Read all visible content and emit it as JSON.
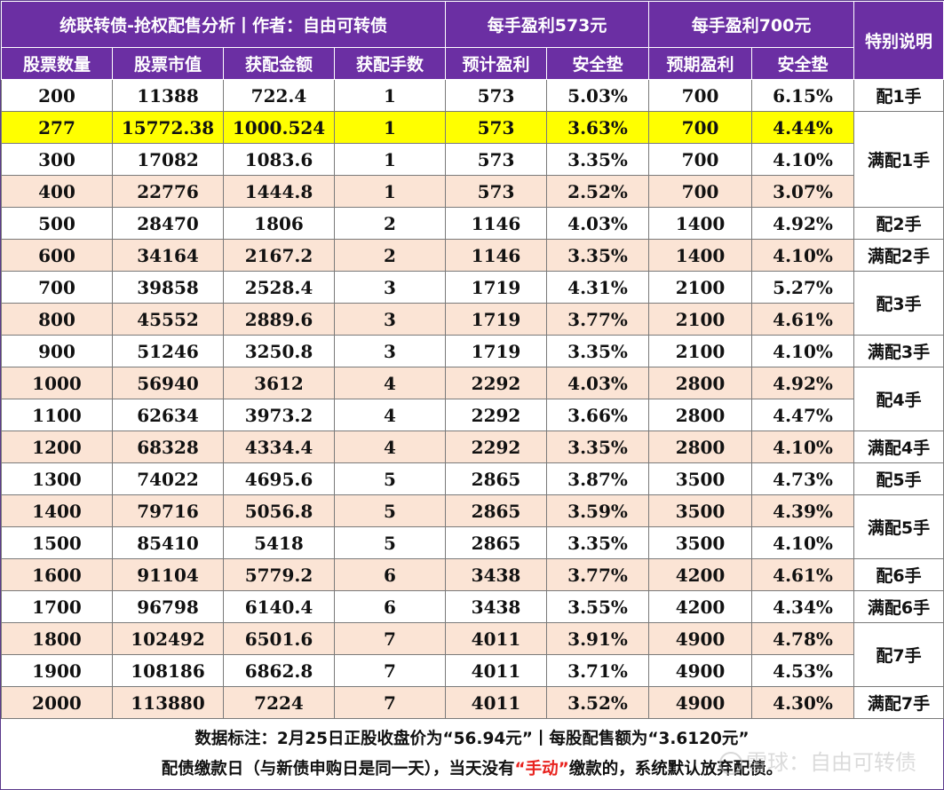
{
  "header": {
    "title": "统联转债-抢权配售分析丨作者：自由可转债",
    "group1": "每手盈利573元",
    "group2": "每手盈利700元",
    "special": "特别说明"
  },
  "columns": [
    "股票数量",
    "股票市值",
    "获配金额",
    "获配手数",
    "预计盈利",
    "安全垫",
    "预期盈利",
    "安全垫"
  ],
  "rows": [
    [
      "200",
      "11388",
      "722.4",
      "1",
      "573",
      "5.03%",
      "700",
      "6.15%"
    ],
    [
      "277",
      "15772.38",
      "1000.524",
      "1",
      "573",
      "3.63%",
      "700",
      "4.44%"
    ],
    [
      "300",
      "17082",
      "1083.6",
      "1",
      "573",
      "3.35%",
      "700",
      "4.10%"
    ],
    [
      "400",
      "22776",
      "1444.8",
      "1",
      "573",
      "2.52%",
      "700",
      "3.07%"
    ],
    [
      "500",
      "28470",
      "1806",
      "2",
      "1146",
      "4.03%",
      "1400",
      "4.92%"
    ],
    [
      "600",
      "34164",
      "2167.2",
      "2",
      "1146",
      "3.35%",
      "1400",
      "4.10%"
    ],
    [
      "700",
      "39858",
      "2528.4",
      "3",
      "1719",
      "4.31%",
      "2100",
      "5.27%"
    ],
    [
      "800",
      "45552",
      "2889.6",
      "3",
      "1719",
      "3.77%",
      "2100",
      "4.61%"
    ],
    [
      "900",
      "51246",
      "3250.8",
      "3",
      "1719",
      "3.35%",
      "2100",
      "4.10%"
    ],
    [
      "1000",
      "56940",
      "3612",
      "4",
      "2292",
      "4.03%",
      "2800",
      "4.92%"
    ],
    [
      "1100",
      "62634",
      "3973.2",
      "4",
      "2292",
      "3.66%",
      "2800",
      "4.47%"
    ],
    [
      "1200",
      "68328",
      "4334.4",
      "4",
      "2292",
      "3.35%",
      "2800",
      "4.10%"
    ],
    [
      "1300",
      "74022",
      "4695.6",
      "5",
      "2865",
      "3.87%",
      "3500",
      "4.73%"
    ],
    [
      "1400",
      "79716",
      "5056.8",
      "5",
      "2865",
      "3.59%",
      "3500",
      "4.39%"
    ],
    [
      "1500",
      "85410",
      "5418",
      "5",
      "2865",
      "3.35%",
      "3500",
      "4.10%"
    ],
    [
      "1600",
      "91104",
      "5779.2",
      "6",
      "3438",
      "3.77%",
      "4200",
      "4.61%"
    ],
    [
      "1700",
      "96798",
      "6140.4",
      "6",
      "3438",
      "3.55%",
      "4200",
      "4.34%"
    ],
    [
      "1800",
      "102492",
      "6501.6",
      "7",
      "4011",
      "3.91%",
      "4900",
      "4.78%"
    ],
    [
      "1900",
      "108186",
      "6862.8",
      "7",
      "4011",
      "3.71%",
      "4900",
      "4.53%"
    ],
    [
      "2000",
      "113880",
      "7224",
      "7",
      "4011",
      "3.52%",
      "4900",
      "4.30%"
    ]
  ],
  "notes": [
    {
      "start": 0,
      "span": 1,
      "text": "配1手"
    },
    {
      "start": 1,
      "span": 3,
      "text": "满配1手"
    },
    {
      "start": 4,
      "span": 1,
      "text": "配2手"
    },
    {
      "start": 5,
      "span": 1,
      "text": "满配2手"
    },
    {
      "start": 6,
      "span": 2,
      "text": "配3手"
    },
    {
      "start": 8,
      "span": 1,
      "text": "满配3手"
    },
    {
      "start": 9,
      "span": 2,
      "text": "配4手"
    },
    {
      "start": 11,
      "span": 1,
      "text": "满配4手"
    },
    {
      "start": 12,
      "span": 1,
      "text": "配5手"
    },
    {
      "start": 13,
      "span": 2,
      "text": "满配5手"
    },
    {
      "start": 15,
      "span": 1,
      "text": "配6手"
    },
    {
      "start": 16,
      "span": 1,
      "text": "满配6手"
    },
    {
      "start": 17,
      "span": 2,
      "text": "配7手"
    },
    {
      "start": 19,
      "span": 1,
      "text": "满配7手"
    }
  ],
  "highlight_row": 1,
  "highlight_color": "#ffff00",
  "header_color": "#6b2fa3",
  "alt_row_color": "#fbe4d5",
  "footer": {
    "line1": "数据标注：2月25日正股收盘价为“56.94元”丨每股配售额为“3.6120元”",
    "line2_pre": "配债缴款日（与新债申购日是同一天），当天没有",
    "line2_red": "“手动”",
    "line2_post": "缴款的，系统默认放弃配债。",
    "accent_color": "#e8231f"
  },
  "watermark": "雪球：自由可转债"
}
